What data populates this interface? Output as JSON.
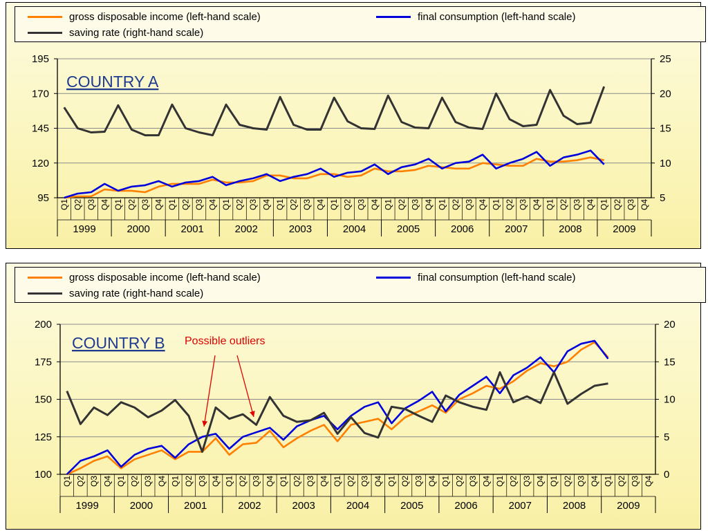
{
  "chart_data": [
    {
      "type": "line",
      "title": "COUNTRY A",
      "quarter_labels": [
        "Q1",
        "Q2",
        "Q3",
        "Q4"
      ],
      "years": [
        "1999",
        "2000",
        "2001",
        "2002",
        "2003",
        "2004",
        "2005",
        "2006",
        "2007",
        "2008",
        "2009"
      ],
      "left_axis": {
        "ylim": [
          95,
          195
        ],
        "ticks": [
          "95",
          "120",
          "145",
          "170",
          "195"
        ]
      },
      "right_axis": {
        "ylim": [
          5,
          25
        ],
        "ticks": [
          "5",
          "10",
          "15",
          "20",
          "25"
        ]
      },
      "series": [
        {
          "name": "gross disposable income (left-hand scale)",
          "axis": "left",
          "color": "#ff7f00",
          "values": [
            95,
            96,
            96,
            101,
            100,
            100,
            99,
            103,
            105,
            105,
            105,
            108,
            106,
            106,
            107,
            111,
            111,
            109,
            109,
            112,
            112,
            110,
            111,
            116,
            114,
            114,
            115,
            118,
            117,
            116,
            116,
            120,
            119,
            118,
            118,
            123,
            121,
            121,
            122,
            124,
            122
          ]
        },
        {
          "name": "final consumption (left-hand scale)",
          "axis": "left",
          "color": "#0000dd",
          "values": [
            95,
            98,
            99,
            105,
            100,
            103,
            104,
            107,
            103,
            106,
            107,
            110,
            104,
            107,
            109,
            112,
            107,
            110,
            112,
            116,
            110,
            113,
            114,
            119,
            112,
            117,
            119,
            123,
            116,
            120,
            121,
            126,
            116,
            120,
            123,
            128,
            118,
            124,
            126,
            129,
            119
          ]
        },
        {
          "name": "saving rate (right-hand scale)",
          "axis": "right",
          "color": "#333333",
          "values": [
            18,
            15,
            14.4,
            14.5,
            18.3,
            14.8,
            14,
            14,
            18.4,
            15,
            14.4,
            14,
            18.4,
            15.5,
            15,
            14.8,
            19.5,
            15.5,
            14.8,
            14.8,
            19.4,
            16,
            15,
            14.9,
            19.7,
            15.9,
            15.1,
            15,
            19.4,
            15.9,
            15.1,
            14.9,
            20,
            16.3,
            15.3,
            15.5,
            20.5,
            16.8,
            15.6,
            15.8,
            21
          ]
        }
      ]
    },
    {
      "type": "line",
      "title": "COUNTRY B",
      "annotation": "Possible outliers",
      "quarter_labels": [
        "Q1",
        "Q2",
        "Q3",
        "Q4"
      ],
      "years": [
        "1999",
        "2000",
        "2001",
        "2002",
        "2003",
        "2004",
        "2005",
        "2006",
        "2007",
        "2008",
        "2009"
      ],
      "left_axis": {
        "ylim": [
          100,
          200
        ],
        "ticks": [
          "100",
          "125",
          "150",
          "175",
          "200"
        ]
      },
      "right_axis": {
        "ylim": [
          0,
          20
        ],
        "ticks": [
          "0",
          "5",
          "10",
          "15",
          "20"
        ]
      },
      "series": [
        {
          "name": "gross disposable income (left-hand scale)",
          "axis": "left",
          "color": "#ff7f00",
          "values": [
            100,
            104,
            109,
            112,
            104,
            110,
            113,
            116,
            110,
            115,
            115,
            124,
            113,
            120,
            121,
            129,
            118,
            124,
            129,
            133,
            122,
            133,
            135,
            137,
            130,
            138,
            142,
            146,
            141,
            150,
            154,
            159,
            157,
            162,
            169,
            174,
            172,
            175,
            183,
            188,
            178
          ]
        },
        {
          "name": "final consumption (left-hand scale)",
          "axis": "left",
          "color": "#0000dd",
          "values": [
            100,
            109,
            112,
            116,
            105,
            113,
            117,
            119,
            111,
            120,
            125,
            127,
            117,
            125,
            128,
            131,
            123,
            132,
            136,
            139,
            130,
            139,
            145,
            148,
            134,
            144,
            149,
            155,
            142,
            153,
            159,
            165,
            154,
            166,
            171,
            178,
            168,
            182,
            187,
            189,
            177
          ]
        },
        {
          "name": "saving rate (right-hand scale)",
          "axis": "right",
          "color": "#333333",
          "values": [
            11.1,
            6.7,
            8.9,
            7.9,
            9.6,
            8.9,
            7.6,
            8.5,
            9.9,
            7.8,
            3,
            8.9,
            7.4,
            8,
            6.6,
            10.3,
            7.8,
            7,
            7.2,
            8.2,
            5.4,
            7.6,
            5.5,
            4.9,
            9,
            8.7,
            7.8,
            7,
            10.5,
            9.6,
            9,
            8.6,
            13.6,
            9.6,
            10.4,
            9.5,
            13.6,
            9.4,
            10.7,
            11.8,
            12.1
          ]
        }
      ]
    }
  ]
}
